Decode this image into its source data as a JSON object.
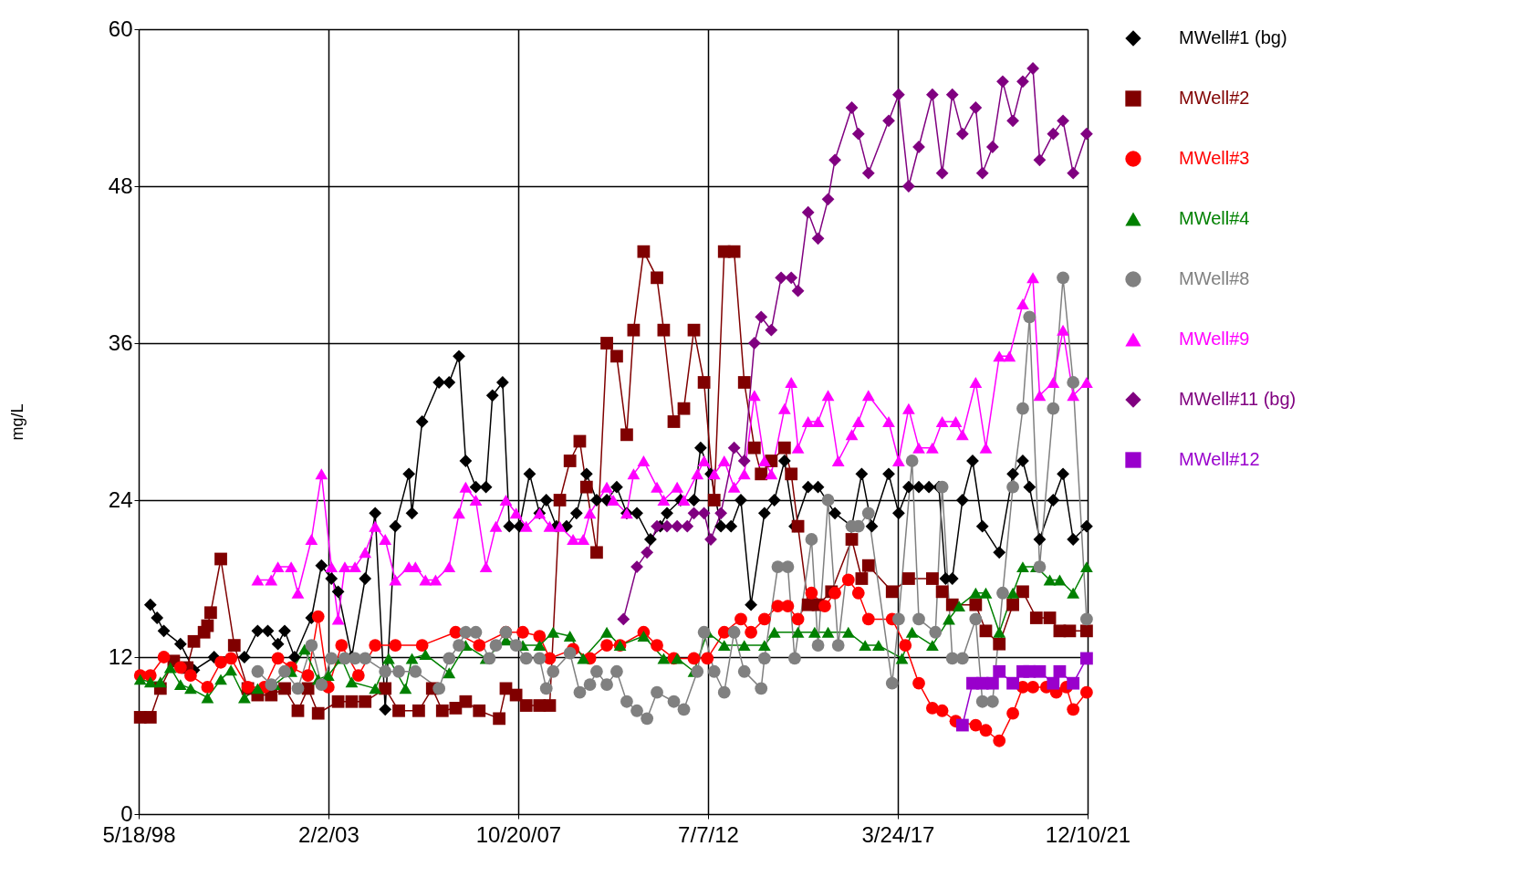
{
  "chart_data": {
    "type": "line",
    "ylabel": "mg/L",
    "xlim": [
      "1998-05-18",
      "2021-12-10"
    ],
    "xticks": [
      {
        "value": "1998-05-18",
        "label": "5/18/98"
      },
      {
        "value": "2003-02-02",
        "label": "2/2/03"
      },
      {
        "value": "2007-10-20",
        "label": "10/20/07"
      },
      {
        "value": "2012-07-07",
        "label": "7/7/12"
      },
      {
        "value": "2017-03-24",
        "label": "3/24/17"
      },
      {
        "value": "2021-12-10",
        "label": "12/10/21"
      }
    ],
    "ylim": [
      0,
      60
    ],
    "yticks": [
      0,
      12,
      24,
      36,
      48,
      60
    ],
    "grid": true,
    "legend": "right",
    "line_style": "solid",
    "series": [
      {
        "name": "MWell#1 (bg)",
        "color": "#000000",
        "marker": "diamond",
        "x": [
          "1998-09",
          "1998-11",
          "1999-01",
          "1999-06",
          "1999-10",
          "2000-04",
          "2001-01",
          "2001-05",
          "2001-08",
          "2001-11",
          "2002-01",
          "2002-04",
          "2002-09",
          "2002-12",
          "2003-03",
          "2003-05",
          "2003-09",
          "2004-01",
          "2004-04",
          "2004-07",
          "2004-10",
          "2005-02",
          "2005-03",
          "2005-06",
          "2005-11",
          "2006-02",
          "2006-05",
          "2006-07",
          "2006-10",
          "2007-01",
          "2007-03",
          "2007-06",
          "2007-08",
          "2007-11",
          "2008-02",
          "2008-05",
          "2008-07",
          "2008-10",
          "2009-01",
          "2009-04",
          "2009-07",
          "2009-10",
          "2010-01",
          "2010-04",
          "2010-07",
          "2010-10",
          "2011-02",
          "2011-05",
          "2011-07",
          "2011-11",
          "2012-03",
          "2012-05",
          "2012-08",
          "2012-11",
          "2013-02",
          "2013-05",
          "2013-08",
          "2013-12",
          "2014-03",
          "2014-06",
          "2014-09",
          "2015-01",
          "2015-04",
          "2015-09",
          "2016-02",
          "2016-05",
          "2016-08",
          "2017-01",
          "2017-04",
          "2017-07",
          "2017-10",
          "2018-01",
          "2018-04",
          "2018-06",
          "2018-08",
          "2018-11",
          "2019-02",
          "2019-05",
          "2019-10",
          "2020-02",
          "2020-05",
          "2020-07",
          "2020-10",
          "2021-02",
          "2021-05",
          "2021-08",
          "2021-12"
        ],
        "values": [
          16,
          15,
          14,
          13,
          11,
          12,
          12,
          14,
          14,
          13,
          14,
          12,
          15,
          19,
          18,
          17,
          12,
          18,
          23,
          8,
          22,
          26,
          23,
          30,
          33,
          33,
          35,
          27,
          25,
          25,
          32,
          33,
          22,
          22,
          26,
          23,
          24,
          22,
          22,
          23,
          26,
          24,
          24,
          25,
          23,
          23,
          21,
          22,
          23,
          24,
          24,
          28,
          26,
          22,
          22,
          24,
          16,
          23,
          24,
          27,
          22,
          25,
          25,
          23,
          22,
          26,
          22,
          26,
          23,
          25,
          25,
          25,
          25,
          18,
          18,
          24,
          27,
          22,
          20,
          26,
          27,
          25,
          21,
          24,
          26,
          21,
          22
        ]
      },
      {
        "name": "MWell#2",
        "color": "#800000",
        "marker": "square",
        "x": [
          "1998-06",
          "1998-09",
          "1998-12",
          "1999-04",
          "1999-08",
          "1999-10",
          "2000-01",
          "2000-02",
          "2000-03",
          "2000-06",
          "2000-10",
          "2001-02",
          "2001-05",
          "2001-09",
          "2002-01",
          "2002-05",
          "2002-08",
          "2002-11",
          "2003-05",
          "2003-09",
          "2004-01",
          "2004-07",
          "2004-11",
          "2005-05",
          "2005-09",
          "2005-12",
          "2006-04",
          "2006-07",
          "2006-11",
          "2007-05",
          "2007-07",
          "2007-10",
          "2008-01",
          "2008-05",
          "2008-08",
          "2008-11",
          "2009-02",
          "2009-05",
          "2009-07",
          "2009-10",
          "2010-01",
          "2010-04",
          "2010-07",
          "2010-09",
          "2010-12",
          "2011-04",
          "2011-06",
          "2011-09",
          "2011-12",
          "2012-03",
          "2012-06",
          "2012-09",
          "2012-12",
          "2013-03",
          "2013-06",
          "2013-09",
          "2013-11",
          "2014-02",
          "2014-06",
          "2014-08",
          "2014-10",
          "2015-01",
          "2015-04",
          "2015-08",
          "2016-02",
          "2016-05",
          "2016-07",
          "2017-02",
          "2017-07",
          "2018-02",
          "2018-05",
          "2018-08",
          "2019-03",
          "2019-06",
          "2019-10",
          "2020-02",
          "2020-05",
          "2020-09",
          "2021-01",
          "2021-04",
          "2021-07",
          "2021-12"
        ],
        "values": [
          7.4,
          7.4,
          9.6,
          11.7,
          11.2,
          13.2,
          13.9,
          14.4,
          15.4,
          19.5,
          12.9,
          9.6,
          9.1,
          9.1,
          9.6,
          7.9,
          9.6,
          7.7,
          8.6,
          8.6,
          8.6,
          9.6,
          7.9,
          7.9,
          9.6,
          7.9,
          8.1,
          8.6,
          7.9,
          7.3,
          9.6,
          9.1,
          8.3,
          8.3,
          8.3,
          24,
          27,
          28.5,
          25,
          20,
          36,
          35,
          29,
          37,
          43,
          41,
          37,
          30,
          31,
          37,
          33,
          24,
          43,
          43,
          33,
          28,
          26,
          27,
          28,
          26,
          22,
          16,
          16,
          17,
          21,
          18,
          19,
          17,
          18,
          18,
          17,
          16,
          16,
          14,
          13,
          16,
          17,
          15,
          15,
          14,
          14,
          14
        ]
      },
      {
        "name": "MWell#3",
        "color": "#ff0000",
        "marker": "circle",
        "x": [
          "1998-06",
          "1998-09",
          "1999-01",
          "1999-06",
          "1999-09",
          "2000-02",
          "2000-06",
          "2000-09",
          "2001-02",
          "2001-07",
          "2001-11",
          "2002-03",
          "2002-08",
          "2002-11",
          "2003-02",
          "2003-06",
          "2003-11",
          "2004-04",
          "2004-10",
          "2005-06",
          "2006-04",
          "2006-11",
          "2007-07",
          "2007-12",
          "2008-05",
          "2008-08",
          "2009-03",
          "2009-08",
          "2010-01",
          "2010-05",
          "2010-12",
          "2011-04",
          "2011-09",
          "2012-03",
          "2012-07",
          "2012-12",
          "2013-05",
          "2013-08",
          "2013-12",
          "2014-04",
          "2014-07",
          "2014-10",
          "2015-02",
          "2015-06",
          "2015-09",
          "2016-01",
          "2016-04",
          "2016-07",
          "2017-02",
          "2017-06",
          "2017-10",
          "2018-02",
          "2018-05",
          "2018-09",
          "2019-03",
          "2019-06",
          "2019-10",
          "2020-02",
          "2020-05",
          "2020-08",
          "2020-12",
          "2021-03",
          "2021-06",
          "2021-08",
          "2021-12"
        ],
        "values": [
          10.6,
          10.6,
          12,
          11.2,
          10.6,
          9.7,
          11.6,
          11.9,
          9.7,
          9.7,
          11.9,
          11.2,
          10.6,
          15.1,
          9.7,
          12.9,
          10.6,
          12.9,
          12.9,
          12.9,
          13.9,
          12.9,
          13.9,
          13.9,
          13.6,
          11.9,
          12.6,
          11.9,
          12.9,
          12.9,
          13.9,
          12.9,
          11.9,
          11.9,
          11.9,
          13.9,
          14.9,
          13.9,
          14.9,
          15.9,
          15.9,
          14.9,
          16.9,
          15.9,
          16.9,
          17.9,
          16.9,
          14.9,
          14.9,
          12.9,
          10,
          8.1,
          7.9,
          7.1,
          6.8,
          6.4,
          5.6,
          7.7,
          9.7,
          9.7,
          9.7,
          9.3,
          9.7,
          8,
          9.3
        ]
      },
      {
        "name": "MWell#4",
        "color": "#008000",
        "marker": "triangle-up",
        "x": [
          "1998-06",
          "1998-09",
          "1998-12",
          "1999-03",
          "1999-06",
          "1999-09",
          "2000-02",
          "2000-06",
          "2000-09",
          "2001-01",
          "2001-05",
          "2001-10",
          "2002-03",
          "2002-07",
          "2002-11",
          "2003-02",
          "2003-06",
          "2003-09",
          "2004-04",
          "2004-08",
          "2005-01",
          "2005-03",
          "2005-07",
          "2006-02",
          "2006-07",
          "2007-01",
          "2007-07",
          "2007-12",
          "2008-05",
          "2008-09",
          "2009-02",
          "2009-06",
          "2010-01",
          "2010-05",
          "2010-12",
          "2011-06",
          "2011-10",
          "2012-03",
          "2012-07",
          "2012-12",
          "2013-06",
          "2013-12",
          "2014-03",
          "2014-10",
          "2015-03",
          "2015-07",
          "2016-01",
          "2016-06",
          "2016-10",
          "2017-05",
          "2017-08",
          "2018-02",
          "2018-07",
          "2018-10",
          "2019-03",
          "2019-06",
          "2019-10",
          "2020-02",
          "2020-05",
          "2020-09",
          "2021-01",
          "2021-04",
          "2021-08",
          "2021-12"
        ],
        "values": [
          10.3,
          10.1,
          10.1,
          11.2,
          9.9,
          9.6,
          8.9,
          10.3,
          11,
          8.9,
          9.6,
          9.9,
          10.9,
          12.6,
          10.3,
          10.6,
          11.9,
          10.1,
          9.6,
          11.9,
          9.6,
          11.9,
          12.2,
          10.8,
          12.9,
          11.9,
          13.3,
          12.9,
          12.9,
          13.9,
          13.6,
          11.9,
          13.9,
          12.9,
          13.6,
          11.9,
          11.9,
          10.9,
          13.9,
          12.9,
          12.9,
          12.9,
          13.9,
          13.9,
          13.9,
          13.9,
          13.9,
          12.9,
          12.9,
          11.9,
          13.9,
          12.9,
          14.9,
          15.9,
          16.9,
          16.9,
          13.9,
          16.9,
          18.9,
          18.9,
          17.9,
          17.9,
          16.9,
          18.9
        ]
      },
      {
        "name": "MWell#8",
        "color": "#808080",
        "marker": "circle",
        "x": [
          "2001-05",
          "2001-09",
          "2002-01",
          "2002-05",
          "2002-09",
          "2002-12",
          "2003-03",
          "2003-07",
          "2003-10",
          "2004-01",
          "2004-07",
          "2004-11",
          "2005-04",
          "2005-11",
          "2006-02",
          "2006-05",
          "2006-07",
          "2006-10",
          "2007-02",
          "2007-04",
          "2007-07",
          "2007-10",
          "2008-01",
          "2008-05",
          "2008-07",
          "2008-09",
          "2009-02",
          "2009-05",
          "2009-08",
          "2009-10",
          "2010-01",
          "2010-04",
          "2010-07",
          "2010-10",
          "2011-01",
          "2011-04",
          "2011-09",
          "2011-12",
          "2012-04",
          "2012-06",
          "2012-09",
          "2012-12",
          "2013-03",
          "2013-06",
          "2013-11",
          "2013-12",
          "2014-04",
          "2014-07",
          "2014-09",
          "2015-02",
          "2015-04",
          "2015-07",
          "2015-10",
          "2016-02",
          "2016-04",
          "2016-07",
          "2017-02",
          "2017-04",
          "2017-08",
          "2017-10",
          "2018-03",
          "2018-05",
          "2018-08",
          "2018-11",
          "2019-03",
          "2019-05",
          "2019-08",
          "2019-11",
          "2020-02",
          "2020-05",
          "2020-07",
          "2020-10",
          "2021-02",
          "2021-05",
          "2021-08",
          "2021-12"
        ],
        "values": [
          10.9,
          9.9,
          10.9,
          9.6,
          12.9,
          9.9,
          11.9,
          11.9,
          11.9,
          11.9,
          10.9,
          10.9,
          10.9,
          9.6,
          11.9,
          12.9,
          13.9,
          13.9,
          11.9,
          12.9,
          13.9,
          12.9,
          11.9,
          11.9,
          9.6,
          10.9,
          12.3,
          9.3,
          9.9,
          10.9,
          9.9,
          10.9,
          8.6,
          7.9,
          7.3,
          9.3,
          8.6,
          8,
          10.9,
          13.9,
          10.9,
          9.3,
          13.9,
          10.9,
          9.6,
          11.9,
          18.9,
          18.9,
          11.9,
          21,
          12.9,
          24,
          12.9,
          22,
          22,
          23,
          10,
          14.9,
          27,
          14.9,
          13.9,
          25,
          11.9,
          11.9,
          14.9,
          8.6,
          8.6,
          16.9,
          25,
          31,
          38,
          18.9,
          31,
          41,
          33,
          14.9
        ]
      },
      {
        "name": "MWell#9",
        "color": "#ff00ff",
        "marker": "triangle-up",
        "x": [
          "2001-05",
          "2001-09",
          "2001-11",
          "2002-03",
          "2002-05",
          "2002-09",
          "2002-12",
          "2003-03",
          "2003-05",
          "2003-07",
          "2003-10",
          "2004-01",
          "2004-04",
          "2004-07",
          "2004-10",
          "2005-02",
          "2005-04",
          "2005-07",
          "2005-10",
          "2006-02",
          "2006-05",
          "2006-07",
          "2006-10",
          "2007-01",
          "2007-04",
          "2007-07",
          "2007-10",
          "2008-01",
          "2008-05",
          "2008-08",
          "2008-11",
          "2009-03",
          "2009-06",
          "2009-08",
          "2010-01",
          "2010-03",
          "2010-07",
          "2010-09",
          "2010-12",
          "2011-04",
          "2011-06",
          "2011-10",
          "2011-12",
          "2012-04",
          "2012-06",
          "2012-09",
          "2012-12",
          "2013-03",
          "2013-06",
          "2013-09",
          "2013-12",
          "2014-02",
          "2014-06",
          "2014-08",
          "2014-10",
          "2015-01",
          "2015-04",
          "2015-07",
          "2015-10",
          "2016-02",
          "2016-04",
          "2016-07",
          "2017-01",
          "2017-04",
          "2017-07",
          "2017-10",
          "2018-02",
          "2018-05",
          "2018-09",
          "2018-11",
          "2019-03",
          "2019-06",
          "2019-10",
          "2020-01",
          "2020-05",
          "2020-08",
          "2020-10",
          "2021-02",
          "2021-05",
          "2021-08",
          "2021-12"
        ],
        "values": [
          17.9,
          17.9,
          18.9,
          18.9,
          16.9,
          21,
          26,
          18.9,
          14.9,
          18.9,
          18.9,
          20,
          22,
          21,
          17.9,
          18.9,
          18.9,
          17.9,
          17.9,
          18.9,
          23,
          25,
          24,
          18.9,
          22,
          24,
          23,
          22,
          23,
          22,
          22,
          21,
          21,
          23,
          25,
          24,
          23,
          26,
          27,
          25,
          24,
          25,
          24,
          26,
          27,
          26,
          27,
          25,
          26,
          32,
          27,
          26,
          31,
          33,
          28,
          30,
          30,
          32,
          27,
          29,
          30,
          32,
          30,
          27,
          31,
          28,
          28,
          30,
          30,
          29,
          33,
          28,
          35,
          35,
          39,
          41,
          32,
          33,
          37,
          32,
          33
        ]
      },
      {
        "name": "MWell#11 (bg)",
        "color": "#800080",
        "marker": "diamond",
        "x": [
          "2010-06",
          "2010-10",
          "2011-01",
          "2011-04",
          "2011-07",
          "2011-10",
          "2012-01",
          "2012-03",
          "2012-06",
          "2012-08",
          "2012-11",
          "2013-03",
          "2013-06",
          "2013-09",
          "2013-11",
          "2014-02",
          "2014-05",
          "2014-08",
          "2014-10",
          "2015-01",
          "2015-04",
          "2015-07",
          "2015-09",
          "2016-02",
          "2016-04",
          "2016-07",
          "2017-01",
          "2017-04",
          "2017-07",
          "2017-10",
          "2018-02",
          "2018-05",
          "2018-08",
          "2018-11",
          "2019-03",
          "2019-05",
          "2019-08",
          "2019-11",
          "2020-02",
          "2020-05",
          "2020-08",
          "2020-10",
          "2021-02",
          "2021-05",
          "2021-08",
          "2021-12"
        ],
        "values": [
          14.9,
          18.9,
          20,
          22,
          22,
          22,
          22,
          23,
          23,
          21,
          23,
          28,
          27,
          36,
          38,
          37,
          41,
          41,
          40,
          46,
          44,
          47,
          50,
          54,
          52,
          49,
          53,
          55,
          48,
          51,
          55,
          49,
          55,
          52,
          54,
          49,
          51,
          56,
          53,
          56,
          57,
          50,
          52,
          53,
          49,
          52
        ]
      },
      {
        "name": "MWell#12",
        "color": "#9900cc",
        "marker": "square",
        "x": [
          "2018-11",
          "2019-02",
          "2019-05",
          "2019-08",
          "2019-10",
          "2020-02",
          "2020-05",
          "2020-07",
          "2020-10",
          "2021-02",
          "2021-04",
          "2021-08",
          "2021-12"
        ],
        "values": [
          6.8,
          10,
          10,
          10,
          10.9,
          10,
          10.9,
          10.9,
          10.9,
          10,
          10.9,
          10,
          11.9
        ]
      }
    ]
  }
}
